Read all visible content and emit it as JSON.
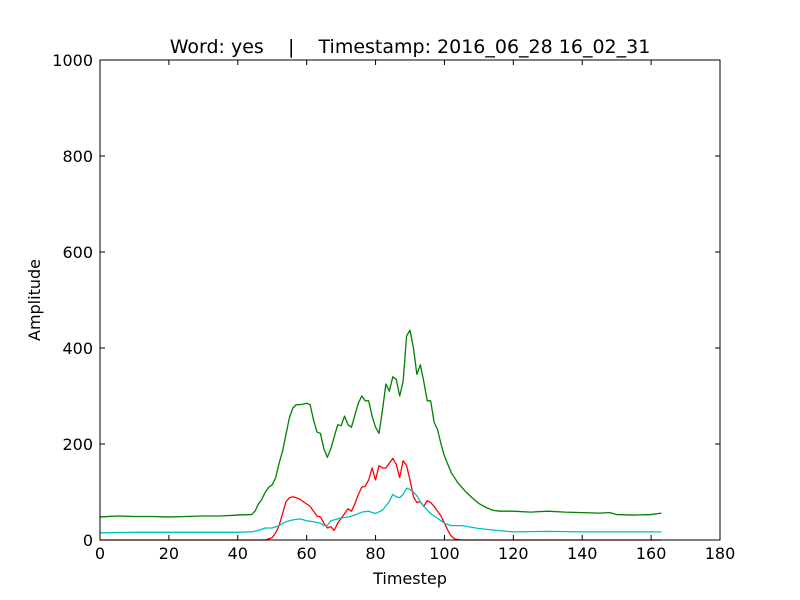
{
  "chart_data": {
    "type": "line",
    "title": "Word: yes    |    Timestamp: 2016_06_28 16_02_31",
    "xlabel": "Timestep",
    "ylabel": "Amplitude",
    "xlim": [
      0,
      180
    ],
    "ylim": [
      0,
      1000
    ],
    "xticks": [
      0,
      20,
      40,
      60,
      80,
      100,
      120,
      140,
      160,
      180
    ],
    "yticks": [
      0,
      200,
      400,
      600,
      800,
      1000
    ],
    "grid": false,
    "series": [
      {
        "color": "#008000",
        "points": [
          [
            0,
            48
          ],
          [
            5,
            50
          ],
          [
            10,
            49
          ],
          [
            15,
            49
          ],
          [
            20,
            48
          ],
          [
            25,
            49
          ],
          [
            30,
            50
          ],
          [
            35,
            50
          ],
          [
            40,
            52
          ],
          [
            44,
            53
          ],
          [
            45,
            60
          ],
          [
            46,
            75
          ],
          [
            47,
            85
          ],
          [
            48,
            100
          ],
          [
            49,
            110
          ],
          [
            50,
            115
          ],
          [
            51,
            130
          ],
          [
            52,
            160
          ],
          [
            53,
            185
          ],
          [
            54,
            220
          ],
          [
            55,
            255
          ],
          [
            56,
            275
          ],
          [
            57,
            282
          ],
          [
            58,
            282
          ],
          [
            59,
            283
          ],
          [
            60,
            285
          ],
          [
            61,
            282
          ],
          [
            62,
            250
          ],
          [
            63,
            225
          ],
          [
            64,
            222
          ],
          [
            65,
            190
          ],
          [
            66,
            172
          ],
          [
            67,
            190
          ],
          [
            68,
            215
          ],
          [
            69,
            240
          ],
          [
            70,
            238
          ],
          [
            71,
            258
          ],
          [
            72,
            240
          ],
          [
            73,
            235
          ],
          [
            74,
            260
          ],
          [
            75,
            285
          ],
          [
            76,
            300
          ],
          [
            77,
            290
          ],
          [
            78,
            290
          ],
          [
            79,
            258
          ],
          [
            80,
            235
          ],
          [
            81,
            222
          ],
          [
            82,
            270
          ],
          [
            83,
            325
          ],
          [
            84,
            310
          ],
          [
            85,
            340
          ],
          [
            86,
            335
          ],
          [
            87,
            300
          ],
          [
            88,
            330
          ],
          [
            89,
            425
          ],
          [
            90,
            437
          ],
          [
            91,
            400
          ],
          [
            92,
            345
          ],
          [
            93,
            365
          ],
          [
            94,
            330
          ],
          [
            95,
            290
          ],
          [
            96,
            290
          ],
          [
            97,
            245
          ],
          [
            98,
            230
          ],
          [
            99,
            200
          ],
          [
            100,
            175
          ],
          [
            102,
            140
          ],
          [
            104,
            118
          ],
          [
            106,
            102
          ],
          [
            108,
            88
          ],
          [
            110,
            76
          ],
          [
            112,
            68
          ],
          [
            114,
            62
          ],
          [
            116,
            60
          ],
          [
            120,
            60
          ],
          [
            125,
            58
          ],
          [
            130,
            60
          ],
          [
            135,
            58
          ],
          [
            140,
            57
          ],
          [
            145,
            56
          ],
          [
            148,
            57
          ],
          [
            150,
            53
          ],
          [
            155,
            52
          ],
          [
            160,
            53
          ],
          [
            163,
            56
          ]
        ]
      },
      {
        "color": "#ff0000",
        "points": [
          [
            0,
            0
          ],
          [
            48,
            0
          ],
          [
            50,
            5
          ],
          [
            51,
            15
          ],
          [
            52,
            30
          ],
          [
            53,
            55
          ],
          [
            54,
            80
          ],
          [
            55,
            88
          ],
          [
            56,
            90
          ],
          [
            57,
            88
          ],
          [
            58,
            85
          ],
          [
            59,
            80
          ],
          [
            60,
            75
          ],
          [
            61,
            70
          ],
          [
            62,
            60
          ],
          [
            63,
            50
          ],
          [
            64,
            48
          ],
          [
            65,
            35
          ],
          [
            66,
            25
          ],
          [
            67,
            28
          ],
          [
            68,
            20
          ],
          [
            69,
            35
          ],
          [
            70,
            45
          ],
          [
            71,
            55
          ],
          [
            72,
            65
          ],
          [
            73,
            60
          ],
          [
            74,
            75
          ],
          [
            75,
            95
          ],
          [
            76,
            110
          ],
          [
            77,
            112
          ],
          [
            78,
            125
          ],
          [
            79,
            150
          ],
          [
            80,
            125
          ],
          [
            81,
            155
          ],
          [
            82,
            150
          ],
          [
            83,
            150
          ],
          [
            84,
            160
          ],
          [
            85,
            170
          ],
          [
            86,
            158
          ],
          [
            87,
            130
          ],
          [
            88,
            165
          ],
          [
            89,
            155
          ],
          [
            90,
            125
          ],
          [
            91,
            90
          ],
          [
            92,
            78
          ],
          [
            93,
            80
          ],
          [
            94,
            70
          ],
          [
            95,
            82
          ],
          [
            96,
            78
          ],
          [
            97,
            70
          ],
          [
            98,
            60
          ],
          [
            99,
            50
          ],
          [
            100,
            35
          ],
          [
            101,
            20
          ],
          [
            102,
            8
          ],
          [
            103,
            2
          ],
          [
            105,
            0
          ],
          [
            163,
            0
          ]
        ]
      },
      {
        "color": "#00bfbf",
        "points": [
          [
            0,
            15
          ],
          [
            10,
            16
          ],
          [
            20,
            16
          ],
          [
            30,
            16
          ],
          [
            40,
            16
          ],
          [
            44,
            17
          ],
          [
            46,
            20
          ],
          [
            48,
            25
          ],
          [
            50,
            25
          ],
          [
            52,
            30
          ],
          [
            54,
            38
          ],
          [
            56,
            42
          ],
          [
            58,
            44
          ],
          [
            60,
            40
          ],
          [
            62,
            38
          ],
          [
            64,
            35
          ],
          [
            65,
            30
          ],
          [
            66,
            30
          ],
          [
            67,
            40
          ],
          [
            68,
            42
          ],
          [
            70,
            46
          ],
          [
            72,
            48
          ],
          [
            74,
            52
          ],
          [
            76,
            58
          ],
          [
            78,
            60
          ],
          [
            80,
            55
          ],
          [
            82,
            62
          ],
          [
            84,
            80
          ],
          [
            85,
            95
          ],
          [
            86,
            90
          ],
          [
            87,
            88
          ],
          [
            88,
            95
          ],
          [
            89,
            108
          ],
          [
            90,
            105
          ],
          [
            91,
            100
          ],
          [
            92,
            92
          ],
          [
            93,
            80
          ],
          [
            94,
            70
          ],
          [
            96,
            55
          ],
          [
            98,
            45
          ],
          [
            100,
            35
          ],
          [
            102,
            30
          ],
          [
            105,
            30
          ],
          [
            110,
            24
          ],
          [
            115,
            20
          ],
          [
            120,
            17
          ],
          [
            130,
            18
          ],
          [
            140,
            17
          ],
          [
            150,
            17
          ],
          [
            160,
            17
          ],
          [
            163,
            17
          ]
        ]
      }
    ]
  }
}
